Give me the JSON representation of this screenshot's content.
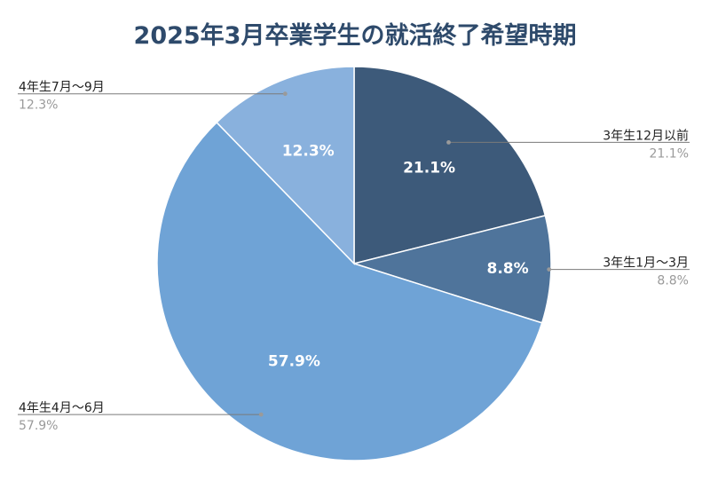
{
  "chart_data": {
    "type": "pie",
    "title": "2025年3月卒業学生の就活終了希望時期",
    "slices": [
      {
        "label": "3年生12月以前",
        "value": 21.1,
        "display": "21.1%",
        "color": "#3d5a7a",
        "side": "right"
      },
      {
        "label": "3年生1月〜3月",
        "value": 8.8,
        "display": "8.8%",
        "color": "#4f749b",
        "side": "right"
      },
      {
        "label": "4年生4月〜6月",
        "value": 57.9,
        "display": "57.9%",
        "color": "#6fa3d6",
        "side": "left"
      },
      {
        "label": "4年生7月〜9月",
        "value": 12.3,
        "display": "12.3%",
        "color": "#89b1dd",
        "side": "left"
      }
    ],
    "start_angle_deg": 0,
    "direction": "clockwise",
    "legend": "callouts",
    "title_color": "#2e4a6b"
  }
}
